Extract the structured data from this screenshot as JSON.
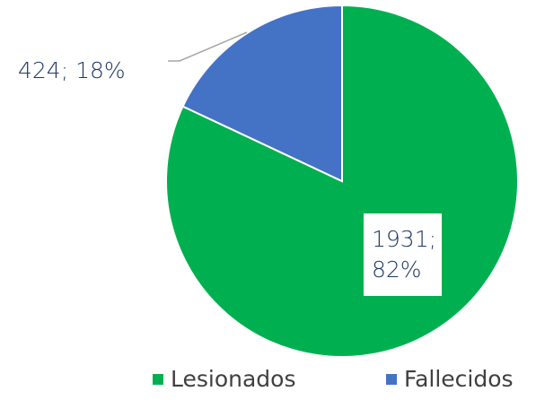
{
  "chart_data": {
    "type": "pie",
    "categories": [
      "Lesionados",
      "Fallecidos"
    ],
    "values": [
      1931,
      424
    ],
    "value_labels": [
      "1931; 82%",
      "424; 18%"
    ],
    "colors": [
      "#00b050",
      "#4472c4"
    ],
    "legend": "bottom"
  }
}
